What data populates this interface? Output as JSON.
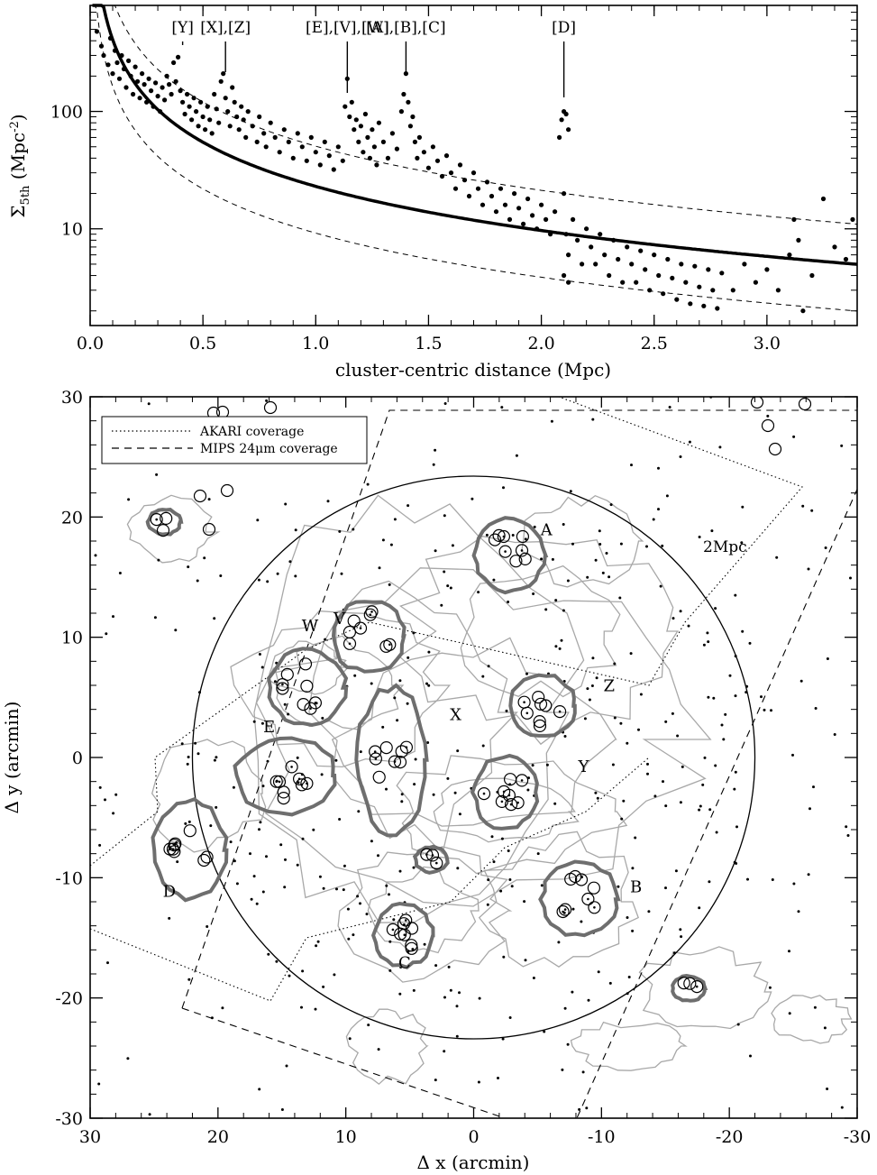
{
  "chart_data": [
    {
      "type": "scatter",
      "xlabel": "cluster-centric distance (Mpc)",
      "ylabel_main": "Σ",
      "ylabel_sub": "5th",
      "ylabel_unit": " (Mpc",
      "ylabel_exp": "-2",
      "ylabel_close": ")",
      "xlim": [
        0,
        3.4
      ],
      "ylim": [
        1.5,
        800
      ],
      "yscale": "log",
      "x_ticks": [
        "0.0",
        "0.5",
        "1.0",
        "1.5",
        "2.0",
        "2.5",
        "3.0"
      ],
      "y_ticks": [
        "10",
        "100"
      ],
      "annotations": [
        {
          "label": "[Y]",
          "x": 0.41
        },
        {
          "label": "[X],[Z]",
          "x": 0.6
        },
        {
          "label": "[E],[V],[W]",
          "x": 1.14
        },
        {
          "label": "[A],[B],[C]",
          "x": 1.4
        },
        {
          "label": "[D]",
          "x": 2.1
        }
      ],
      "fit_line": {
        "form": "Sigma = 23 * r^-1.25 (approx)",
        "style": "solid-thick"
      },
      "envelope": {
        "upper_factor": 2.2,
        "lower_factor": 0.4,
        "style": "dashed"
      },
      "points": [
        [
          0.03,
          480
        ],
        [
          0.05,
          360
        ],
        [
          0.06,
          300
        ],
        [
          0.08,
          250
        ],
        [
          0.09,
          420
        ],
        [
          0.1,
          210
        ],
        [
          0.11,
          330
        ],
        [
          0.12,
          260
        ],
        [
          0.13,
          190
        ],
        [
          0.14,
          300
        ],
        [
          0.15,
          230
        ],
        [
          0.16,
          160
        ],
        [
          0.17,
          270
        ],
        [
          0.18,
          200
        ],
        [
          0.19,
          140
        ],
        [
          0.2,
          240
        ],
        [
          0.21,
          180
        ],
        [
          0.22,
          130
        ],
        [
          0.23,
          210
        ],
        [
          0.24,
          170
        ],
        [
          0.25,
          120
        ],
        [
          0.26,
          190
        ],
        [
          0.27,
          150
        ],
        [
          0.28,
          110
        ],
        [
          0.29,
          175
        ],
        [
          0.3,
          135
        ],
        [
          0.31,
          100
        ],
        [
          0.32,
          160
        ],
        [
          0.33,
          125
        ],
        [
          0.34,
          200
        ],
        [
          0.35,
          170
        ],
        [
          0.36,
          140
        ],
        [
          0.37,
          260
        ],
        [
          0.38,
          180
        ],
        [
          0.39,
          290
        ],
        [
          0.4,
          150
        ],
        [
          0.41,
          120
        ],
        [
          0.42,
          95
        ],
        [
          0.43,
          140
        ],
        [
          0.44,
          110
        ],
        [
          0.45,
          85
        ],
        [
          0.46,
          130
        ],
        [
          0.47,
          100
        ],
        [
          0.48,
          75
        ],
        [
          0.49,
          120
        ],
        [
          0.5,
          90
        ],
        [
          0.51,
          70
        ],
        [
          0.52,
          110
        ],
        [
          0.53,
          85
        ],
        [
          0.54,
          65
        ],
        [
          0.55,
          140
        ],
        [
          0.56,
          105
        ],
        [
          0.57,
          80
        ],
        [
          0.58,
          180
        ],
        [
          0.59,
          210
        ],
        [
          0.6,
          130
        ],
        [
          0.61,
          100
        ],
        [
          0.62,
          75
        ],
        [
          0.63,
          160
        ],
        [
          0.64,
          120
        ],
        [
          0.65,
          90
        ],
        [
          0.66,
          70
        ],
        [
          0.67,
          110
        ],
        [
          0.68,
          85
        ],
        [
          0.69,
          60
        ],
        [
          0.7,
          100
        ],
        [
          0.72,
          75
        ],
        [
          0.74,
          55
        ],
        [
          0.75,
          90
        ],
        [
          0.77,
          65
        ],
        [
          0.78,
          50
        ],
        [
          0.8,
          80
        ],
        [
          0.82,
          60
        ],
        [
          0.84,
          45
        ],
        [
          0.86,
          70
        ],
        [
          0.88,
          55
        ],
        [
          0.9,
          40
        ],
        [
          0.92,
          65
        ],
        [
          0.94,
          50
        ],
        [
          0.96,
          38
        ],
        [
          0.98,
          60
        ],
        [
          1.0,
          45
        ],
        [
          1.02,
          35
        ],
        [
          1.04,
          55
        ],
        [
          1.06,
          42
        ],
        [
          1.08,
          32
        ],
        [
          1.1,
          50
        ],
        [
          1.12,
          38
        ],
        [
          1.14,
          190
        ],
        [
          1.13,
          110
        ],
        [
          1.15,
          90
        ],
        [
          1.16,
          120
        ],
        [
          1.17,
          70
        ],
        [
          1.18,
          85
        ],
        [
          1.19,
          55
        ],
        [
          1.2,
          75
        ],
        [
          1.21,
          45
        ],
        [
          1.22,
          95
        ],
        [
          1.23,
          60
        ],
        [
          1.24,
          40
        ],
        [
          1.25,
          70
        ],
        [
          1.26,
          50
        ],
        [
          1.27,
          35
        ],
        [
          1.28,
          80
        ],
        [
          1.3,
          55
        ],
        [
          1.32,
          40
        ],
        [
          1.34,
          65
        ],
        [
          1.36,
          48
        ],
        [
          1.38,
          100
        ],
        [
          1.39,
          140
        ],
        [
          1.4,
          210
        ],
        [
          1.41,
          120
        ],
        [
          1.42,
          75
        ],
        [
          1.43,
          90
        ],
        [
          1.44,
          55
        ],
        [
          1.45,
          40
        ],
        [
          1.46,
          60
        ],
        [
          1.48,
          45
        ],
        [
          1.5,
          33
        ],
        [
          1.52,
          50
        ],
        [
          1.54,
          38
        ],
        [
          1.56,
          28
        ],
        [
          1.58,
          42
        ],
        [
          1.6,
          30
        ],
        [
          1.62,
          22
        ],
        [
          1.64,
          35
        ],
        [
          1.66,
          26
        ],
        [
          1.68,
          19
        ],
        [
          1.7,
          30
        ],
        [
          1.72,
          22
        ],
        [
          1.74,
          16
        ],
        [
          1.76,
          25
        ],
        [
          1.78,
          19
        ],
        [
          1.8,
          14
        ],
        [
          1.82,
          22
        ],
        [
          1.84,
          16
        ],
        [
          1.86,
          12
        ],
        [
          1.88,
          20
        ],
        [
          1.9,
          15
        ],
        [
          1.92,
          11
        ],
        [
          1.94,
          18
        ],
        [
          1.96,
          13
        ],
        [
          1.98,
          10
        ],
        [
          2.0,
          16
        ],
        [
          2.02,
          12
        ],
        [
          2.04,
          9
        ],
        [
          2.06,
          14
        ],
        [
          2.08,
          60
        ],
        [
          2.09,
          85
        ],
        [
          2.1,
          100
        ],
        [
          2.11,
          95
        ],
        [
          2.12,
          70
        ],
        [
          2.1,
          20
        ],
        [
          2.11,
          9
        ],
        [
          2.12,
          6
        ],
        [
          2.1,
          4
        ],
        [
          2.12,
          3.5
        ],
        [
          2.14,
          12
        ],
        [
          2.16,
          8
        ],
        [
          2.18,
          5
        ],
        [
          2.2,
          10
        ],
        [
          2.22,
          7
        ],
        [
          2.24,
          5
        ],
        [
          2.26,
          9
        ],
        [
          2.28,
          6
        ],
        [
          2.3,
          4
        ],
        [
          2.32,
          8
        ],
        [
          2.34,
          5.5
        ],
        [
          2.36,
          3.5
        ],
        [
          2.38,
          7
        ],
        [
          2.4,
          5
        ],
        [
          2.42,
          3.5
        ],
        [
          2.44,
          6.5
        ],
        [
          2.46,
          4.5
        ],
        [
          2.48,
          3
        ],
        [
          2.5,
          6
        ],
        [
          2.52,
          4
        ],
        [
          2.54,
          2.8
        ],
        [
          2.56,
          5.5
        ],
        [
          2.58,
          3.8
        ],
        [
          2.6,
          2.5
        ],
        [
          2.62,
          5
        ],
        [
          2.64,
          3.5
        ],
        [
          2.66,
          2.3
        ],
        [
          2.68,
          4.8
        ],
        [
          2.7,
          3.2
        ],
        [
          2.72,
          2.2
        ],
        [
          2.74,
          4.5
        ],
        [
          2.76,
          3
        ],
        [
          2.78,
          2.1
        ],
        [
          2.8,
          4.2
        ],
        [
          2.85,
          3
        ],
        [
          2.9,
          5
        ],
        [
          2.95,
          3.5
        ],
        [
          3.0,
          4.5
        ],
        [
          3.05,
          3
        ],
        [
          3.1,
          6
        ],
        [
          3.12,
          12
        ],
        [
          3.14,
          8
        ],
        [
          3.16,
          2
        ],
        [
          3.2,
          4
        ],
        [
          3.25,
          18
        ],
        [
          3.3,
          7
        ],
        [
          3.35,
          5.5
        ],
        [
          3.38,
          12
        ]
      ]
    },
    {
      "type": "scatter",
      "xlabel": "Δ x (arcmin)",
      "ylabel": "Δ y (arcmin)",
      "xlim": [
        30,
        -30
      ],
      "ylim": [
        -30,
        30
      ],
      "x_ticks": [
        "30",
        "20",
        "10",
        "0",
        "-10",
        "-20",
        "-30"
      ],
      "y_ticks": [
        "30",
        "20",
        "10",
        "0",
        "-10",
        "-20",
        "-30"
      ],
      "legend": {
        "placement": "top-left",
        "entries": [
          {
            "label": "AKARI coverage",
            "style": "dotted"
          },
          {
            "label": "MIPS 24μm coverage",
            "style": "dashed"
          }
        ]
      },
      "circle_label": "2Mpc",
      "circle": {
        "x": 0,
        "y": 0,
        "r": 22
      },
      "groups": [
        {
          "label": "A",
          "x": -2.8,
          "y": 16.8,
          "label_x": -5.7,
          "label_y": 18.5
        },
        {
          "label": "B",
          "x": -8.3,
          "y": -11.8,
          "label_x": -12.7,
          "label_y": -11.2
        },
        {
          "label": "C",
          "x": 5.5,
          "y": -14.8,
          "label_x": 5.4,
          "label_y": -17.5
        },
        {
          "label": "D",
          "x": 22.2,
          "y": -7.7,
          "label_x": 23.8,
          "label_y": -11.6
        },
        {
          "label": "E",
          "x": 14.7,
          "y": -1.5,
          "label_x": 16.0,
          "label_y": 2.1
        },
        {
          "label": "V",
          "x": 8.2,
          "y": 10.1,
          "label_x": 10.5,
          "label_y": 11.1
        },
        {
          "label": "W",
          "x": 13.0,
          "y": 5.8,
          "label_x": 12.8,
          "label_y": 10.5
        },
        {
          "label": "X",
          "x": 6.4,
          "y": -0.2,
          "label_x": 1.4,
          "label_y": 3.1
        },
        {
          "label": "Y",
          "x": -2.5,
          "y": -2.9,
          "label_x": -8.6,
          "label_y": -1.2
        },
        {
          "label": "Z",
          "x": -5.4,
          "y": 4.3,
          "label_x": -10.6,
          "label_y": 5.5
        },
        {
          "label": "",
          "x": 3.3,
          "y": -8.5
        },
        {
          "label": "",
          "x": -16.8,
          "y": -19.2
        },
        {
          "label": "",
          "x": 24.2,
          "y": 19.6
        }
      ]
    }
  ]
}
